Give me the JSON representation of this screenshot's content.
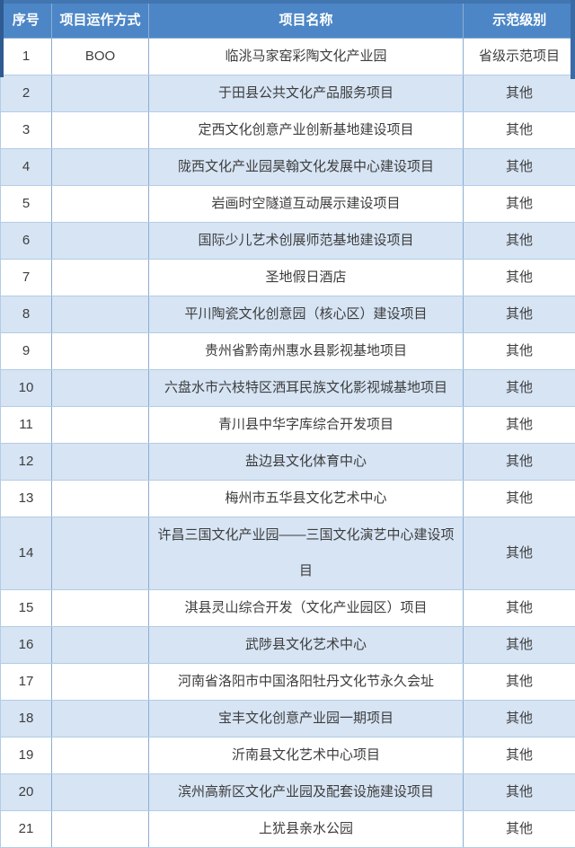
{
  "colors": {
    "header_bg": "#4c86c6",
    "header_text": "#ffffff",
    "row_alt_bg": "#d6e4f4",
    "row_bg": "#ffffff",
    "border_vertical": "#8cadd2",
    "border_horizontal": "#b3cce6",
    "outer_top": "#4176b1",
    "accent_left": "#2f5b92",
    "accent_right": "#3a6ba7",
    "body_text": "#3d3d3d"
  },
  "table": {
    "columns": [
      {
        "id": "index",
        "label": "序号"
      },
      {
        "id": "mode",
        "label": "项目运作方式"
      },
      {
        "id": "name",
        "label": "项目名称"
      },
      {
        "id": "level",
        "label": "示范级别"
      }
    ],
    "rows": [
      {
        "index": "1",
        "mode": "BOO",
        "name": "临洮马家窑彩陶文化产业园",
        "level": "省级示范项目"
      },
      {
        "index": "2",
        "mode": "",
        "name": "于田县公共文化产品服务项目",
        "level": "其他"
      },
      {
        "index": "3",
        "mode": "",
        "name": "定西文化创意产业创新基地建设项目",
        "level": "其他"
      },
      {
        "index": "4",
        "mode": "",
        "name": "陇西文化产业园昊翰文化发展中心建设项目",
        "level": "其他"
      },
      {
        "index": "5",
        "mode": "",
        "name": "岩画时空隧道互动展示建设项目",
        "level": "其他"
      },
      {
        "index": "6",
        "mode": "",
        "name": "国际少儿艺术创展师范基地建设项目",
        "level": "其他"
      },
      {
        "index": "7",
        "mode": "",
        "name": "圣地假日酒店",
        "level": "其他"
      },
      {
        "index": "8",
        "mode": "",
        "name": "平川陶瓷文化创意园（核心区）建设项目",
        "level": "其他"
      },
      {
        "index": "9",
        "mode": "",
        "name": "贵州省黔南州惠水县影视基地项目",
        "level": "其他"
      },
      {
        "index": "10",
        "mode": "",
        "name": "六盘水市六枝特区洒耳民族文化影视城基地项目",
        "level": "其他"
      },
      {
        "index": "11",
        "mode": "",
        "name": "青川县中华字库综合开发项目",
        "level": "其他"
      },
      {
        "index": "12",
        "mode": "",
        "name": "盐边县文化体育中心",
        "level": "其他"
      },
      {
        "index": "13",
        "mode": "",
        "name": "梅州市五华县文化艺术中心",
        "level": "其他"
      },
      {
        "index": "14",
        "mode": "",
        "name": "许昌三国文化产业园——三国文化演艺中心建设项目",
        "level": "其他"
      },
      {
        "index": "15",
        "mode": "",
        "name": "淇县灵山综合开发（文化产业园区）项目",
        "level": "其他"
      },
      {
        "index": "16",
        "mode": "",
        "name": "武陟县文化艺术中心",
        "level": "其他"
      },
      {
        "index": "17",
        "mode": "",
        "name": "河南省洛阳市中国洛阳牡丹文化节永久会址",
        "level": "其他"
      },
      {
        "index": "18",
        "mode": "",
        "name": "宝丰文化创意产业园一期项目",
        "level": "其他"
      },
      {
        "index": "19",
        "mode": "",
        "name": "沂南县文化艺术中心项目",
        "level": "其他"
      },
      {
        "index": "20",
        "mode": "",
        "name": "滨州高新区文化产业园及配套设施建设项目",
        "level": "其他"
      },
      {
        "index": "21",
        "mode": "",
        "name": "上犹县亲水公园",
        "level": "其他"
      }
    ]
  }
}
